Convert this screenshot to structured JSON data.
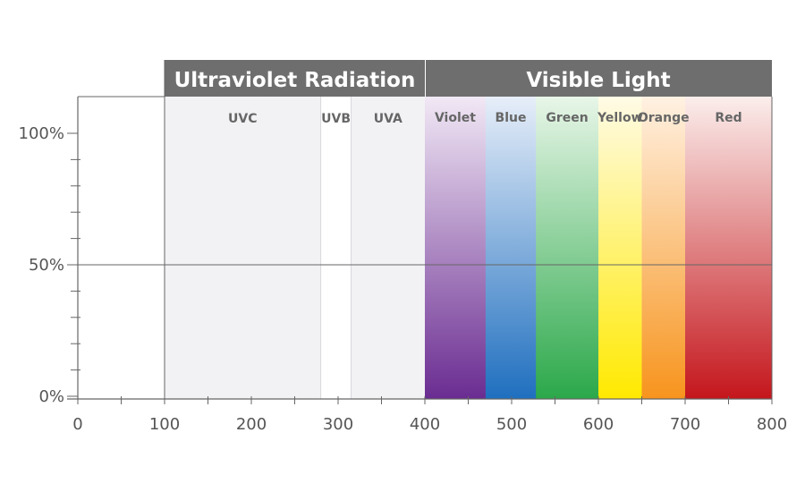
{
  "chart_data": {
    "type": "area",
    "title": "",
    "xlabel": "",
    "ylabel": "",
    "xlim": [
      0,
      800
    ],
    "ylim": [
      0,
      100
    ],
    "x_ticks": [
      0,
      100,
      200,
      300,
      400,
      500,
      600,
      700,
      800
    ],
    "y_tick_labels": [
      {
        "value": 0,
        "label": "0%"
      },
      {
        "value": 50,
        "label": "50%"
      },
      {
        "value": 100,
        "label": "100%"
      }
    ],
    "y_minor_step": 10,
    "x_minor_step": 50,
    "grid": false,
    "reference_line_y": 50,
    "headers": [
      {
        "label": "Ultraviolet Radiation",
        "x_start": 100,
        "x_end": 400,
        "color": "#6e6e6e"
      },
      {
        "label": "Visible Light",
        "x_start": 400,
        "x_end": 800,
        "color": "#6e6e6e"
      }
    ],
    "uv_bands": [
      {
        "label": "UVC",
        "x_start": 100,
        "x_end": 280,
        "color": "#f2f2f5"
      },
      {
        "label": "UVB",
        "x_start": 280,
        "x_end": 315,
        "color": "#ffffff"
      },
      {
        "label": "UVA",
        "x_start": 315,
        "x_end": 400,
        "color": "#f2f2f5"
      }
    ],
    "visible_bands": [
      {
        "label": "Violet",
        "x_start": 400,
        "x_end": 470,
        "color_top": "#f1e8f5",
        "color_bottom": "#6a2c91"
      },
      {
        "label": "Blue",
        "x_start": 470,
        "x_end": 528,
        "color_top": "#e7eef9",
        "color_bottom": "#1f6fbf"
      },
      {
        "label": "Green",
        "x_start": 528,
        "x_end": 600,
        "color_top": "#e8f6e8",
        "color_bottom": "#2ba84a"
      },
      {
        "label": "Yellow",
        "x_start": 600,
        "x_end": 650,
        "color_top": "#fffbe6",
        "color_bottom": "#ffe900"
      },
      {
        "label": "Orange",
        "x_start": 650,
        "x_end": 700,
        "color_top": "#fff1e2",
        "color_bottom": "#f7941d"
      },
      {
        "label": "Red",
        "x_start": 700,
        "x_end": 800,
        "color_top": "#fbeeec",
        "color_bottom": "#c4161c"
      }
    ],
    "colors": {
      "axis": "#666666",
      "band_label": "#666666"
    }
  }
}
